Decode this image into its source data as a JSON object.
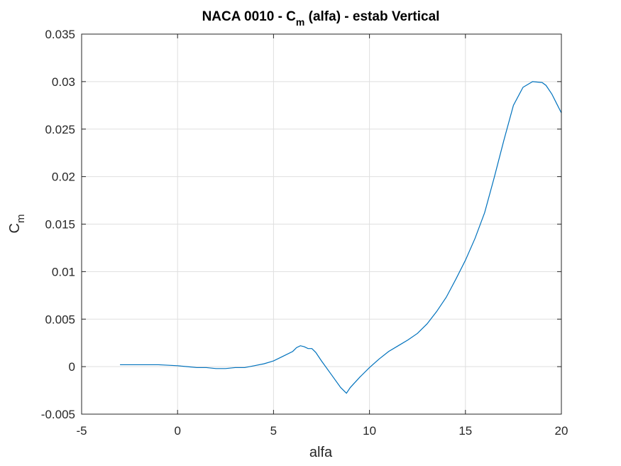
{
  "chart_data": {
    "type": "line",
    "title": {
      "prefix": "NACA 0010 - C",
      "subscript": "m",
      "suffix": " (alfa) - estab Vertical"
    },
    "xlabel": "alfa",
    "ylabel": {
      "main": "C",
      "subscript": "m"
    },
    "xlim": [
      -5,
      20
    ],
    "ylim": [
      -0.005,
      0.035
    ],
    "xticks": [
      -5,
      0,
      5,
      10,
      15,
      20
    ],
    "yticks": [
      -0.005,
      0,
      0.005,
      0.01,
      0.015,
      0.02,
      0.025,
      0.03,
      0.035
    ],
    "xtick_labels": [
      "-5",
      "0",
      "5",
      "10",
      "15",
      "20"
    ],
    "ytick_labels": [
      "-0.005",
      "0",
      "0.005",
      "0.01",
      "0.015",
      "0.02",
      "0.025",
      "0.03",
      "0.035"
    ],
    "grid": true,
    "series": [
      {
        "color": "#0072bd",
        "x": [
          -3,
          -2,
          -1,
          0,
          0.5,
          1,
          1.5,
          2,
          2.5,
          3,
          3.5,
          4,
          4.5,
          5,
          5.5,
          6,
          6.2,
          6.4,
          6.6,
          6.8,
          7,
          7.2,
          7.5,
          8,
          8.5,
          8.8,
          9,
          9.5,
          10,
          10.5,
          11,
          11.5,
          12,
          12.5,
          13,
          13.5,
          14,
          14.5,
          15,
          15.5,
          16,
          16.5,
          17,
          17.5,
          18,
          18.5,
          19,
          19.2,
          19.5,
          19.8,
          20
        ],
        "y": [
          0.0002,
          0.0002,
          0.0002,
          0.0001,
          0.0,
          -0.0001,
          -0.0001,
          -0.0002,
          -0.0002,
          -0.0001,
          -0.0001,
          0.0001,
          0.0003,
          0.0006,
          0.0011,
          0.0016,
          0.002,
          0.0022,
          0.0021,
          0.0019,
          0.0019,
          0.0015,
          0.0006,
          -0.0008,
          -0.0022,
          -0.0028,
          -0.0022,
          -0.0011,
          -0.0001,
          0.0008,
          0.0016,
          0.0022,
          0.0028,
          0.0035,
          0.0045,
          0.0058,
          0.0073,
          0.0092,
          0.0112,
          0.0135,
          0.0162,
          0.0199,
          0.0238,
          0.0275,
          0.0294,
          0.03,
          0.0299,
          0.0296,
          0.0287,
          0.0275,
          0.0267
        ]
      }
    ]
  }
}
